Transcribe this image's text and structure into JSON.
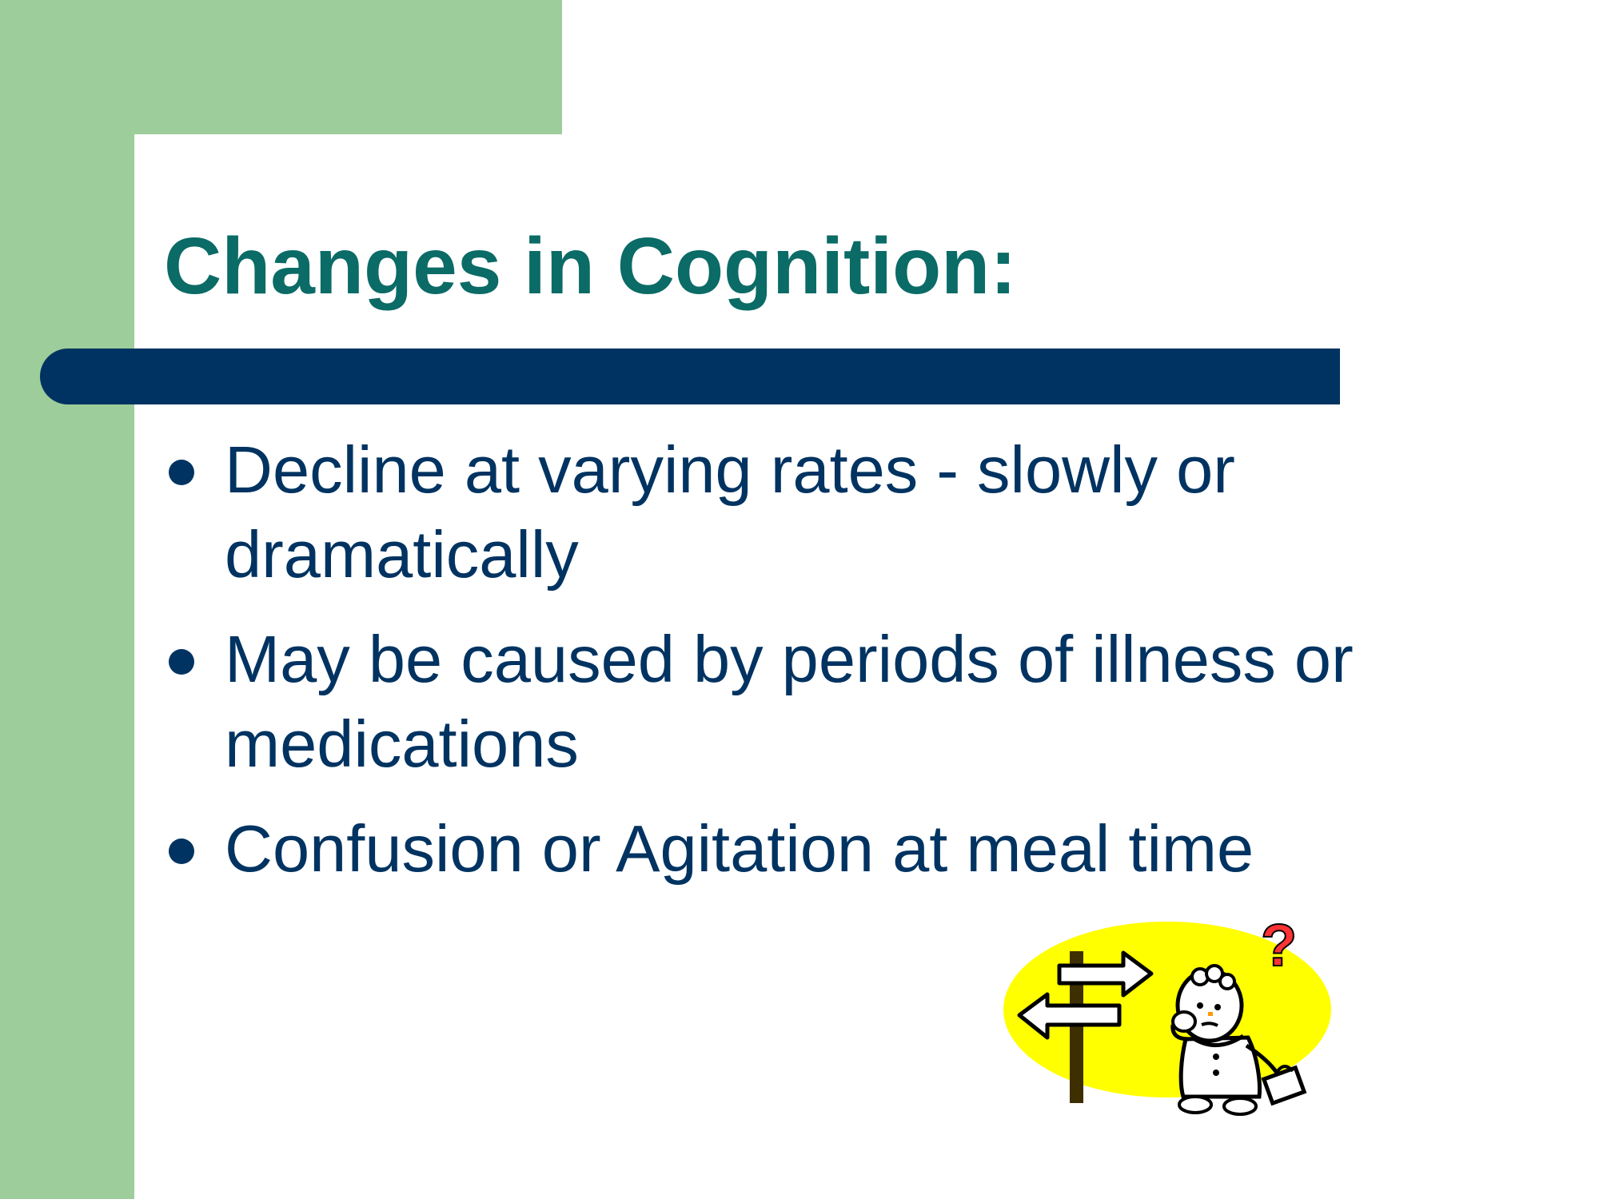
{
  "slide": {
    "title": "Changes in Cognition:",
    "bullets": [
      {
        "text": "Decline at varying rates - slowly or dramatically"
      },
      {
        "text": "May be caused by periods of illness or medications"
      },
      {
        "text": "Confusion or Agitation at meal time"
      }
    ],
    "colors": {
      "accent_green": "#9dcd9a",
      "title_teal": "#0b6b66",
      "navy": "#003361",
      "clipart_yellow": "#ffff00"
    },
    "clipart": {
      "icon": "confused-person-signpost-icon",
      "mark": "?"
    }
  }
}
